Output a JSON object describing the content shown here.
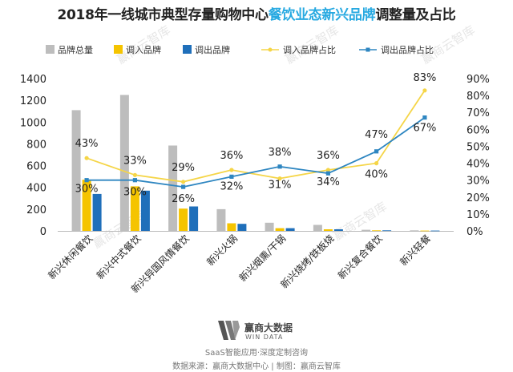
{
  "title": {
    "prefix": "2018年一线城市典型存量购物中心",
    "highlight": "餐饮业态新兴品牌",
    "suffix": "调整量及占比"
  },
  "chart_data": {
    "type": "bar",
    "categories": [
      "新兴休闲餐饮",
      "新兴中式餐饮",
      "新兴异国风情餐饮",
      "新兴火锅",
      "新兴烟熏/干锅",
      "新兴烧烤/铁板烧",
      "新兴复合餐饮",
      "新兴轻餐"
    ],
    "series": [
      {
        "name": "品牌总量",
        "type": "bar",
        "axis": "left",
        "color": "#bdbdbd",
        "values": [
          1110,
          1250,
          785,
          200,
          75,
          55,
          10,
          5
        ]
      },
      {
        "name": "调入品牌",
        "type": "bar",
        "axis": "left",
        "color": "#f5c400",
        "values": [
          470,
          410,
          205,
          70,
          25,
          15,
          5,
          3
        ]
      },
      {
        "name": "调出品牌",
        "type": "bar",
        "axis": "left",
        "color": "#1f6fba",
        "values": [
          340,
          370,
          225,
          65,
          25,
          15,
          5,
          3
        ]
      },
      {
        "name": "调入品牌占比",
        "type": "line",
        "axis": "right",
        "color": "#f5d547",
        "values": [
          0.43,
          0.33,
          0.29,
          0.36,
          0.31,
          0.36,
          0.4,
          0.83
        ],
        "labels": [
          "43%",
          "33%",
          "29%",
          "36%",
          "31%",
          "36%",
          "40%",
          "83%"
        ]
      },
      {
        "name": "调出品牌占比",
        "type": "line",
        "axis": "right",
        "color": "#2e86c1",
        "values": [
          0.3,
          0.3,
          0.26,
          0.32,
          0.38,
          0.34,
          0.47,
          0.67
        ],
        "labels": [
          "30%",
          "30%",
          "26%",
          "32%",
          "38%",
          "34%",
          "47%",
          "67%"
        ]
      }
    ],
    "y_left": {
      "min": 0,
      "max": 1400,
      "ticks": [
        "0",
        "200",
        "400",
        "600",
        "800",
        "1000",
        "1200",
        "1400"
      ]
    },
    "y_right": {
      "min": 0,
      "max": 0.9,
      "ticks": [
        "0%",
        "10%",
        "20%",
        "30%",
        "40%",
        "50%",
        "60%",
        "70%",
        "80%",
        "90%"
      ]
    },
    "grid": false,
    "legend": "top"
  },
  "watermark": "赢商云智库",
  "logo": {
    "cn": "赢商大数据",
    "en": "WIN DATA"
  },
  "slogan": "SaaS智能应用·深度定制咨询",
  "source": "数据来源：赢商大数据中心 | 制图：赢商云智库"
}
